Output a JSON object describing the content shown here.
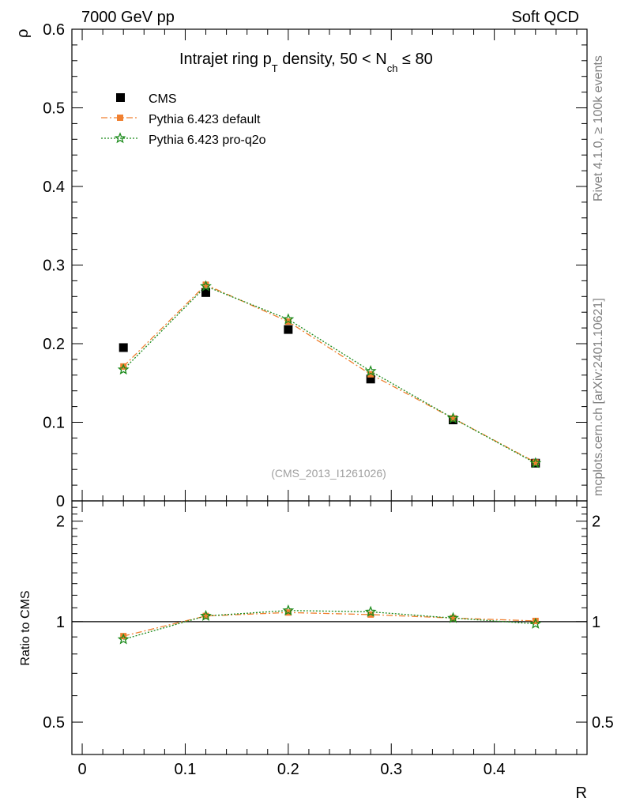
{
  "header": {
    "energy": "7000 GeV pp",
    "category": "Soft QCD"
  },
  "side_labels": {
    "rivet": "Rivet 4.1.0, ≥ 100k events",
    "mcplots": "mcplots.cern.ch [arXiv:2401.10621]"
  },
  "chart_data": [
    {
      "type": "scatter",
      "title": {
        "main": "Intrajet ring p",
        "sub_T": "T",
        "mid": " density, 50 < N",
        "sub_ch": "ch",
        "end": " ≤ 80"
      },
      "ylabel": "ρ",
      "ylim": [
        0,
        0.6
      ],
      "y_ticks": [
        0,
        0.1,
        0.2,
        0.3,
        0.4,
        0.5,
        0.6
      ],
      "y_tick_labels": [
        "0",
        "0.1",
        "0.2",
        "0.3",
        "0.4",
        "0.5",
        "0.6"
      ],
      "xlim": [
        -0.01,
        0.49
      ],
      "x": [
        0.04,
        0.12,
        0.2,
        0.28,
        0.36,
        0.44
      ],
      "watermark": "(CMS_2013_I1261026)",
      "legend_position": "top-left",
      "series": [
        {
          "name": "CMS",
          "marker": "square",
          "color": "#000000",
          "values": [
            0.195,
            0.265,
            0.218,
            0.155,
            0.103,
            0.048
          ]
        },
        {
          "name": "Pythia 6.423 default",
          "marker": "small-square",
          "line": "dash-dot",
          "color": "#f08030",
          "values": [
            0.171,
            0.275,
            0.228,
            0.161,
            0.105,
            0.049
          ]
        },
        {
          "name": "Pythia 6.423 pro-q2o",
          "marker": "star",
          "line": "dotted",
          "color": "#1a8a1a",
          "values": [
            0.167,
            0.273,
            0.231,
            0.165,
            0.105,
            0.048
          ]
        }
      ]
    },
    {
      "type": "line",
      "ylabel": "Ratio to CMS",
      "xlabel": "R",
      "ylim": [
        0.4,
        2.3
      ],
      "y_scale": "log",
      "y_tick_labels": [
        "0.5",
        "1",
        "2"
      ],
      "y_ticks": [
        0.5,
        1,
        2
      ],
      "x_ticks": [
        0,
        0.1,
        0.2,
        0.3,
        0.4
      ],
      "x_tick_labels": [
        "0",
        "0.1",
        "0.2",
        "0.3",
        "0.4"
      ],
      "xlim": [
        -0.01,
        0.49
      ],
      "x": [
        0.04,
        0.12,
        0.2,
        0.28,
        0.36,
        0.44
      ],
      "reference_line": 1,
      "series": [
        {
          "name": "Pythia 6.423 default",
          "color": "#f08030",
          "values": [
            0.905,
            1.04,
            1.065,
            1.05,
            1.025,
            1.005
          ]
        },
        {
          "name": "Pythia 6.423 pro-q2o",
          "color": "#1a8a1a",
          "values": [
            0.885,
            1.04,
            1.08,
            1.07,
            1.025,
            0.985
          ]
        }
      ]
    }
  ]
}
